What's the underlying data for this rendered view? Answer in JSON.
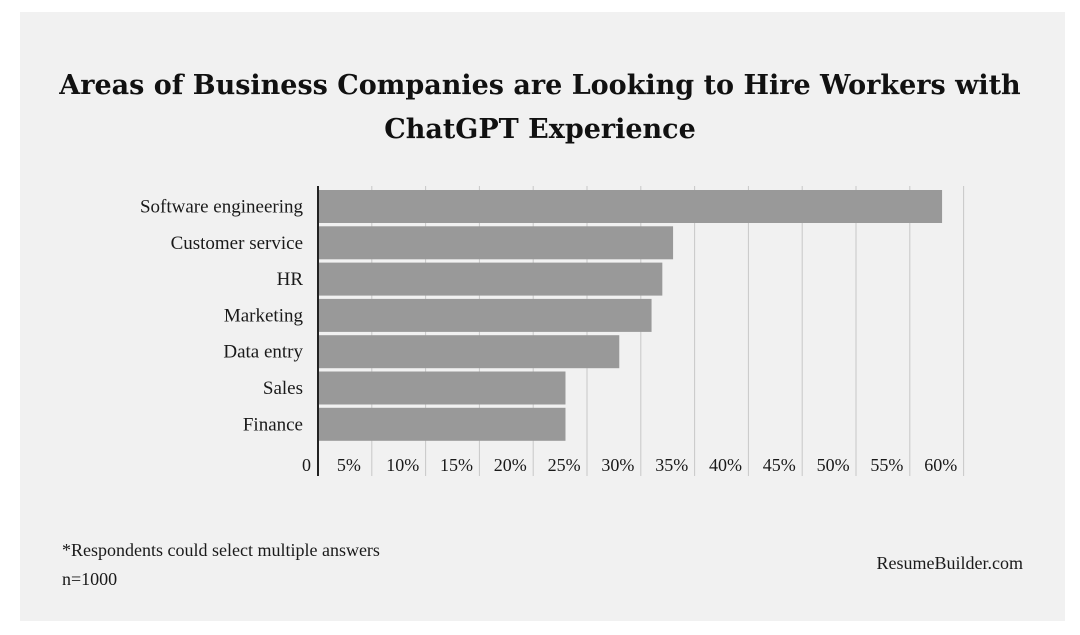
{
  "chart_data": {
    "type": "bar",
    "orientation": "horizontal",
    "title": "Areas of Business Companies are Looking to Hire Workers with ChatGPT Experience",
    "categories": [
      "Software engineering",
      "Customer service",
      "HR",
      "Marketing",
      "Data entry",
      "Sales",
      "Finance"
    ],
    "values": [
      58,
      33,
      32,
      31,
      28,
      23,
      23
    ],
    "unit": "%",
    "xlim": [
      0,
      60
    ],
    "xticks": [
      0,
      5,
      10,
      15,
      20,
      25,
      30,
      35,
      40,
      45,
      50,
      55,
      60
    ],
    "xtick_labels": [
      "0",
      "5%",
      "10%",
      "15%",
      "20%",
      "25%",
      "30%",
      "35%",
      "40%",
      "45%",
      "50%",
      "55%",
      "60%"
    ],
    "xlabel": "",
    "ylabel": "",
    "grid": "vertical",
    "legend": "none",
    "bar_color": "#999999",
    "grid_color": "#c8c8c8",
    "background_color": "#f1f1f1"
  },
  "footnotes": {
    "note": "*Respondents could select multiple answers",
    "sample": "n=1000"
  },
  "source": "ResumeBuilder.com"
}
